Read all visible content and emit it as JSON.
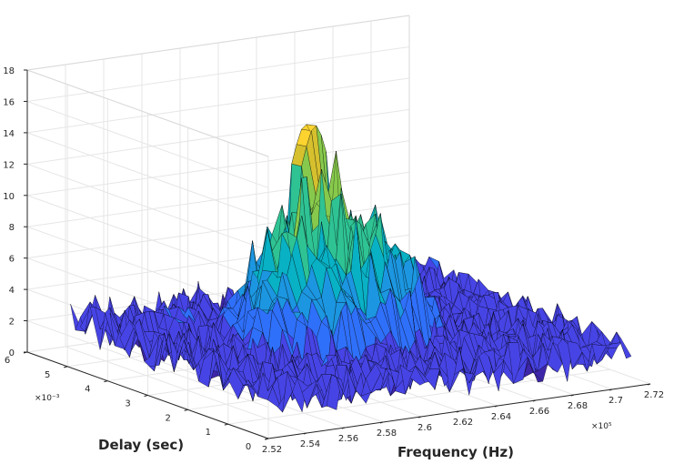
{
  "chart_data": {
    "type": "surface",
    "title": "",
    "xlabel": "Frequency (Hz)",
    "ylabel": "Delay (sec)",
    "zlabel": "",
    "x_multiplier_label": "×10⁵",
    "y_multiplier_label": "×10⁻³",
    "xlim": [
      252000,
      272000
    ],
    "ylim": [
      0,
      0.006
    ],
    "zlim": [
      0,
      18
    ],
    "x_ticks": [
      252000,
      254000,
      256000,
      258000,
      260000,
      262000,
      264000,
      266000,
      268000,
      270000,
      272000
    ],
    "x_tick_labels": [
      "2.52",
      "2.54",
      "2.56",
      "2.58",
      "2.6",
      "2.62",
      "2.64",
      "2.66",
      "2.68",
      "2.7",
      "2.72"
    ],
    "y_ticks": [
      0,
      0.001,
      0.002,
      0.003,
      0.004,
      0.005,
      0.006
    ],
    "y_tick_labels": [
      "0",
      "1",
      "2",
      "3",
      "4",
      "5",
      "6"
    ],
    "z_ticks": [
      0,
      2,
      4,
      6,
      8,
      10,
      12,
      14,
      16,
      18
    ],
    "z_tick_labels": [
      "0",
      "2",
      "4",
      "6",
      "8",
      "10",
      "12",
      "14",
      "16",
      "18"
    ],
    "grid": true,
    "colormap": "parula",
    "colormap_colors": [
      "#3e26a8",
      "#4744e5",
      "#2f70fa",
      "#1c96e0",
      "#09b1c5",
      "#2fc394",
      "#87c94c",
      "#d6c02e",
      "#fcd32f",
      "#f9fb15"
    ],
    "edge_color": "#000000",
    "surface": {
      "x_range": [
        253000,
        271000
      ],
      "y_range": [
        0,
        0.0054
      ],
      "noise_floor_mean": 2.2,
      "noise_amplitude": 3.0,
      "bump": {
        "x_center": 261000,
        "y_center": 0.0027,
        "x_halfwidth": 5000,
        "y_halfwidth": 0.0016,
        "peak_value": 9.5
      },
      "max_value": 16.8,
      "max_at": [
        262200,
        0.0038
      ]
    }
  }
}
